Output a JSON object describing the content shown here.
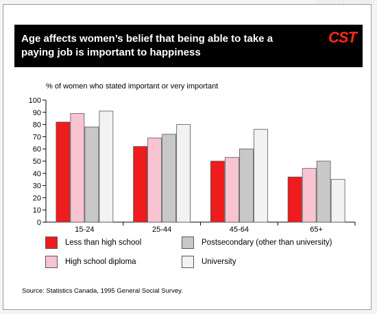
{
  "title": "Age affects women’s belief that being able to take a paying job is important to happiness",
  "logo_text": "CST",
  "source": "Source: Statistics Canada, 1995 General Social Survey.",
  "chart_data": {
    "type": "bar",
    "ylabel": "% of women who stated important or very important",
    "xlabel": "",
    "categories": [
      "15-24",
      "25-44",
      "45-64",
      "65+"
    ],
    "yticks": [
      "0",
      "10",
      "20",
      "30",
      "40",
      "50",
      "60",
      "70",
      "80",
      "90",
      "100"
    ],
    "ylim": [
      0,
      100
    ],
    "grid": false,
    "legend_position": "bottom",
    "series": [
      {
        "name": "Less than high school",
        "color": "#ee1c1c",
        "values": [
          82,
          62,
          50,
          37
        ]
      },
      {
        "name": "High school diploma",
        "color": "#f9c4d2",
        "values": [
          89,
          69,
          53,
          44
        ]
      },
      {
        "name": "Postsecondary (other than university)",
        "color": "#c8c8c8",
        "values": [
          78,
          72,
          60,
          50
        ]
      },
      {
        "name": "University",
        "color": "#f2f2f2",
        "values": [
          91,
          80,
          76,
          35
        ]
      }
    ]
  }
}
